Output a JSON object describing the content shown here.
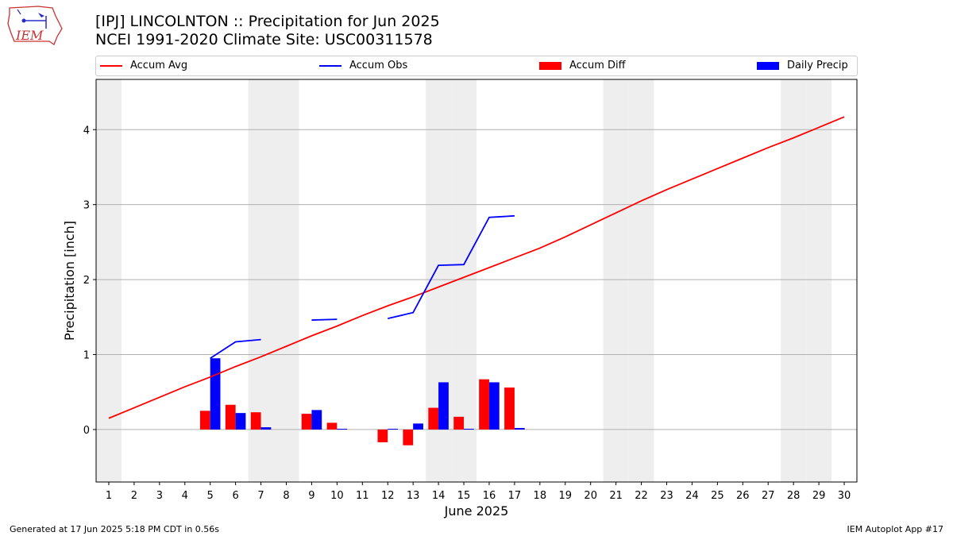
{
  "logo": {
    "text": "IEM"
  },
  "header": {
    "title": "[IPJ] LINCOLNTON :: Precipitation for Jun 2025",
    "subtitle": "NCEI 1991-2020 Climate Site: USC00311578"
  },
  "legend": [
    {
      "label": "Accum Avg",
      "color": "#ff0000",
      "kind": "line"
    },
    {
      "label": "Accum Obs",
      "color": "#0000ff",
      "kind": "line"
    },
    {
      "label": "Accum Diff",
      "color": "#ff0000",
      "kind": "box"
    },
    {
      "label": "Daily Precip",
      "color": "#0000ff",
      "kind": "box"
    }
  ],
  "footer": {
    "left": "Generated at 17 Jun 2025 5:18 PM CDT in 0.56s",
    "right": "IEM Autoplot App #17"
  },
  "chart_data": {
    "type": "bar",
    "xlabel": "June 2025",
    "ylabel": "Precipitation [inch]",
    "x": [
      1,
      2,
      3,
      4,
      5,
      6,
      7,
      8,
      9,
      10,
      11,
      12,
      13,
      14,
      15,
      16,
      17,
      18,
      19,
      20,
      21,
      22,
      23,
      24,
      25,
      26,
      27,
      28,
      29,
      30
    ],
    "xlim": [
      0.5,
      30.5
    ],
    "ylim": [
      -0.7,
      4.67
    ],
    "yticks": [
      0,
      1,
      2,
      3,
      4
    ],
    "grid": true,
    "weekend_shading": [
      1,
      7,
      8,
      14,
      15,
      21,
      22,
      28,
      29
    ],
    "accum_avg": [
      0.15,
      0.29,
      0.43,
      0.57,
      0.7,
      0.84,
      0.97,
      1.11,
      1.25,
      1.38,
      1.52,
      1.65,
      1.77,
      1.9,
      2.03,
      2.16,
      2.29,
      2.42,
      2.57,
      2.73,
      2.89,
      3.05,
      3.2,
      3.34,
      3.48,
      3.62,
      3.76,
      3.89,
      4.03,
      4.17
    ],
    "accum_obs_segments": [
      {
        "x": [
          5,
          6,
          7
        ],
        "y": [
          0.95,
          1.17,
          1.2
        ]
      },
      {
        "x": [
          9,
          10
        ],
        "y": [
          1.46,
          1.47
        ]
      },
      {
        "x": [
          12,
          13,
          14,
          15,
          16,
          17
        ],
        "y": [
          1.48,
          1.56,
          2.19,
          2.2,
          2.83,
          2.85
        ]
      }
    ],
    "accum_diff": [
      {
        "x": 5,
        "value": 0.25
      },
      {
        "x": 6,
        "value": 0.33
      },
      {
        "x": 7,
        "value": 0.23
      },
      {
        "x": 9,
        "value": 0.21
      },
      {
        "x": 10,
        "value": 0.09
      },
      {
        "x": 12,
        "value": -0.17
      },
      {
        "x": 13,
        "value": -0.21
      },
      {
        "x": 14,
        "value": 0.29
      },
      {
        "x": 15,
        "value": 0.17
      },
      {
        "x": 16,
        "value": 0.67
      },
      {
        "x": 17,
        "value": 0.56
      }
    ],
    "daily_precip": [
      {
        "x": 5,
        "value": 0.95
      },
      {
        "x": 6,
        "value": 0.22
      },
      {
        "x": 7,
        "value": 0.03
      },
      {
        "x": 9,
        "value": 0.26
      },
      {
        "x": 10,
        "value": 0.01
      },
      {
        "x": 12,
        "value": 0.01
      },
      {
        "x": 13,
        "value": 0.08
      },
      {
        "x": 14,
        "value": 0.63
      },
      {
        "x": 15,
        "value": 0.01
      },
      {
        "x": 16,
        "value": 0.63
      },
      {
        "x": 17,
        "value": 0.02
      }
    ]
  }
}
